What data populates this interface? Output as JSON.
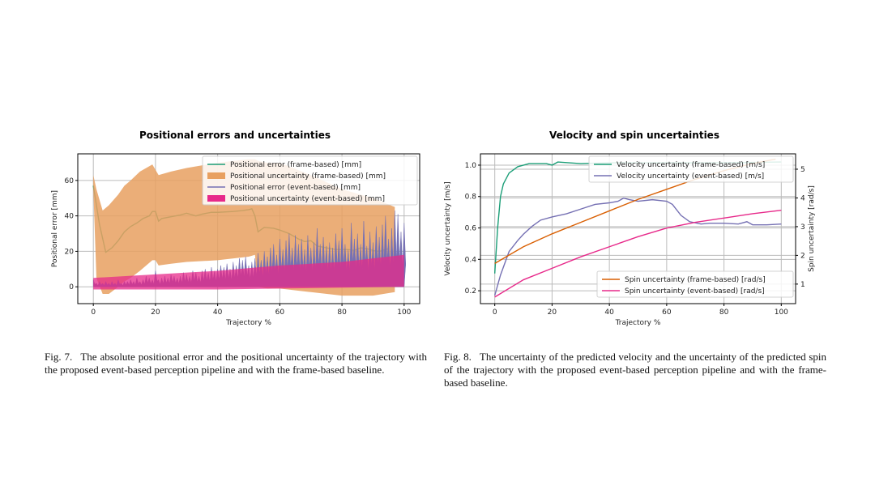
{
  "figures": [
    {
      "label": "Fig. 7.",
      "caption": "The absolute positional error and the positional uncertainty of the trajectory with the proposed event-based perception pipeline and with the frame-based baseline."
    },
    {
      "label": "Fig. 8.",
      "caption": "The uncertainty of the predicted velocity and the uncertainty of the predicted spin of the trajectory with the proposed event-based perception pipeline and with the frame-based baseline."
    }
  ],
  "chart_data": [
    {
      "type": "line",
      "title": "Positional errors and uncertainties",
      "xlabel": "Trajectory %",
      "ylabel": "Positional error [mm]",
      "xlim": [
        -5,
        105
      ],
      "ylim": [
        -9.5,
        75
      ],
      "xticks": [
        0,
        20,
        40,
        60,
        80,
        100
      ],
      "yticks": [
        0,
        20,
        40,
        60
      ],
      "grid": true,
      "legend": "top-right",
      "series": [
        {
          "name": "Positional error (frame-based) [mm]",
          "kind": "line",
          "color": "#1b9e77",
          "x": [
            0,
            2,
            4,
            6,
            8,
            10,
            12,
            14,
            16,
            18,
            19,
            20,
            21,
            22,
            25,
            28,
            30,
            33,
            35,
            38,
            40,
            45,
            48,
            50,
            51,
            52,
            53,
            55,
            58,
            60,
            63,
            66,
            68,
            70,
            72,
            75,
            78,
            82,
            84,
            86,
            88,
            90,
            92,
            95
          ],
          "y": [
            57,
            35,
            19.5,
            22,
            26,
            31,
            34,
            36,
            38.5,
            40,
            42.5,
            42.5,
            37,
            38.5,
            39.5,
            40.5,
            41.5,
            40,
            41,
            42,
            42,
            42.5,
            43,
            43.5,
            44,
            40,
            31,
            33.5,
            33,
            32,
            30,
            27,
            25.5,
            26,
            23,
            22,
            21,
            21,
            20.5,
            22,
            21.5,
            20.5,
            20,
            21.5
          ]
        },
        {
          "name": "Positional uncertainty (frame-based) [mm]",
          "kind": "band",
          "color": "#e8a060",
          "x": [
            0,
            1,
            3,
            5,
            8,
            10,
            12,
            15,
            19,
            20,
            21,
            25,
            30,
            40,
            50,
            52,
            53,
            56,
            60,
            70,
            80,
            90,
            97
          ],
          "upper": [
            63,
            55,
            43,
            46,
            52,
            57,
            60,
            65,
            69,
            66,
            63,
            65,
            67,
            70,
            72,
            72,
            71,
            70,
            70,
            63,
            55,
            50,
            45
          ],
          "lower": [
            55,
            5,
            -4,
            -4,
            0,
            3,
            5,
            9,
            15,
            15,
            12,
            13,
            14,
            15,
            17,
            18,
            0,
            -1,
            -1,
            -3,
            -5,
            -5,
            -3
          ]
        },
        {
          "name": "Positional error (event-based) [mm]",
          "kind": "spiky-area",
          "color": "#7570b3",
          "x": [
            0,
            1,
            2,
            3,
            4,
            5,
            6,
            7,
            8,
            9,
            10,
            11,
            12,
            13,
            14,
            15,
            16,
            17,
            18,
            19,
            20,
            21,
            22,
            23,
            24,
            25,
            26,
            27,
            28,
            29,
            30,
            31,
            32,
            33,
            34,
            35,
            36,
            37,
            38,
            39,
            40,
            41,
            42,
            43,
            44,
            45,
            46,
            47,
            48,
            49,
            50,
            51,
            52,
            53,
            54,
            55,
            56,
            57,
            58,
            59,
            60,
            61,
            62,
            63,
            64,
            65,
            66,
            67,
            68,
            69,
            70,
            71,
            72,
            73,
            74,
            75,
            76,
            77,
            78,
            79,
            80,
            81,
            82,
            83,
            84,
            85,
            86,
            87,
            88,
            89,
            90,
            91,
            92,
            93,
            94,
            95,
            96,
            97,
            98,
            99,
            100
          ],
          "y": [
            4,
            2,
            3,
            2,
            3,
            2,
            3,
            2,
            4,
            2,
            3,
            3,
            4,
            3,
            5,
            3,
            4,
            6,
            5,
            4,
            9,
            4,
            5,
            6,
            5,
            7,
            6,
            5,
            6,
            8,
            7,
            6,
            9,
            8,
            6,
            9,
            10,
            8,
            11,
            9,
            10,
            12,
            11,
            13,
            10,
            14,
            12,
            16,
            15,
            17,
            12,
            14,
            16,
            19,
            15,
            20,
            17,
            22,
            24,
            18,
            27,
            21,
            26,
            30,
            22,
            29,
            24,
            27,
            21,
            29,
            22,
            25,
            33,
            24,
            28,
            23,
            25,
            22,
            30,
            26,
            33,
            24,
            21,
            36,
            27,
            30,
            24,
            37,
            23,
            31,
            25,
            34,
            28,
            35,
            40,
            27,
            33,
            43,
            41,
            31,
            36
          ]
        },
        {
          "name": "Positional uncertainty (event-based) [mm]",
          "kind": "band",
          "color": "#e7298a",
          "x": [
            0,
            20,
            40,
            60,
            80,
            100
          ],
          "upper": [
            5,
            7,
            9,
            12,
            14,
            18
          ],
          "lower": [
            -1.5,
            -1.5,
            -1.5,
            -1,
            -0.5,
            0
          ]
        }
      ]
    },
    {
      "type": "line",
      "title": "Velocity and spin uncertainties",
      "xlabel": "Trajectory %",
      "ylabel": "Velocity uncertainty [m/s]",
      "y2label": "Spin uncertainty [rad/s]",
      "xlim": [
        -5,
        105
      ],
      "ylim": [
        0.118,
        1.072
      ],
      "y2lim": [
        0.32,
        5.535
      ],
      "xticks": [
        0,
        20,
        40,
        60,
        80,
        100
      ],
      "yticks": [
        0.2,
        0.4,
        0.6,
        0.8,
        1.0
      ],
      "y2ticks": [
        1,
        2,
        3,
        4,
        5
      ],
      "grid": true,
      "legend": "top-right (velocity), bottom-right (spin)",
      "series": [
        {
          "name": "Velocity uncertainty (frame-based) [m/s]",
          "axis": "left",
          "color": "#1b9e77",
          "x": [
            0,
            1,
            2,
            3,
            5,
            8,
            12,
            15,
            18,
            20,
            22,
            30,
            40,
            60,
            80,
            100
          ],
          "y": [
            0.31,
            0.6,
            0.8,
            0.88,
            0.95,
            0.99,
            1.01,
            1.01,
            1.01,
            1.0,
            1.02,
            1.01,
            1.015,
            1.015,
            1.015,
            1.02
          ]
        },
        {
          "name": "Velocity uncertainty (event-based) [m/s]",
          "axis": "left",
          "color": "#7570b3",
          "x": [
            0,
            2,
            5,
            8,
            10,
            13,
            16,
            20,
            25,
            30,
            35,
            40,
            43,
            45,
            47,
            50,
            55,
            60,
            62,
            65,
            68,
            72,
            75,
            80,
            85,
            88,
            90,
            95,
            100
          ],
          "y": [
            0.17,
            0.3,
            0.45,
            0.52,
            0.56,
            0.61,
            0.65,
            0.67,
            0.69,
            0.72,
            0.75,
            0.76,
            0.77,
            0.79,
            0.78,
            0.77,
            0.78,
            0.77,
            0.75,
            0.68,
            0.64,
            0.625,
            0.63,
            0.63,
            0.625,
            0.64,
            0.62,
            0.62,
            0.625
          ]
        },
        {
          "name": "Spin uncertainty (frame-based) [rad/s]",
          "axis": "right",
          "color": "#d95f02",
          "x": [
            0,
            10,
            20,
            30,
            40,
            50,
            60,
            70,
            80,
            90,
            98
          ],
          "y": [
            1.72,
            2.3,
            2.75,
            3.15,
            3.55,
            3.95,
            4.3,
            4.65,
            4.95,
            5.2,
            5.35
          ]
        },
        {
          "name": "Spin uncertainty (event-based) [rad/s]",
          "axis": "right",
          "color": "#e7298a",
          "x": [
            0,
            10,
            20,
            30,
            40,
            50,
            60,
            70,
            80,
            90,
            100
          ],
          "y": [
            0.55,
            1.15,
            1.55,
            1.95,
            2.3,
            2.65,
            2.95,
            3.15,
            3.3,
            3.45,
            3.57
          ]
        }
      ]
    }
  ]
}
